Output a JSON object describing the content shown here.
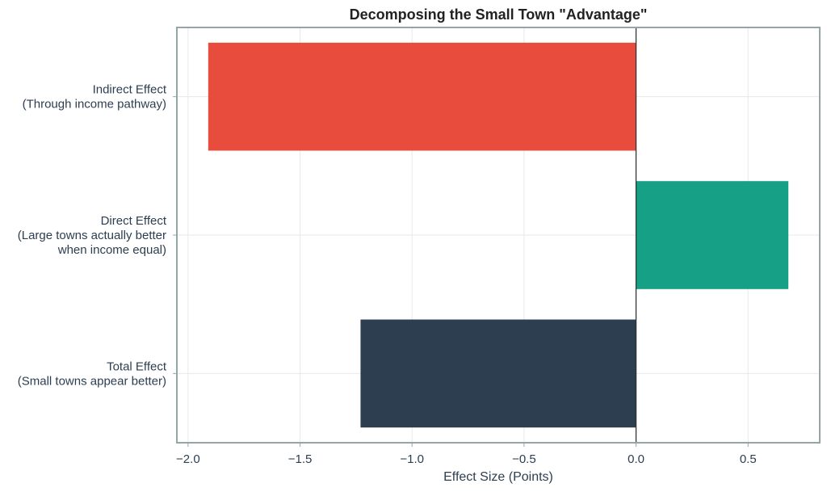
{
  "chart_data": {
    "type": "bar",
    "orientation": "horizontal",
    "title": "Decomposing the Small Town \"Advantage\"",
    "xlabel": "Effect Size (Points)",
    "ylabel": "",
    "xlim": [
      -2.05,
      0.82
    ],
    "x_ticks": [
      -2.0,
      -1.5,
      -1.0,
      -0.5,
      0.0,
      0.5
    ],
    "x_tick_labels": [
      "−2.0",
      "−1.5",
      "−1.0",
      "−0.5",
      "0.0",
      "0.5"
    ],
    "grid": true,
    "reference_line_x": 0,
    "categories": [
      [
        "Indirect Effect",
        "(Through income pathway)"
      ],
      [
        "Direct Effect",
        "(Large towns actually better",
        "when income equal)"
      ],
      [
        "Total Effect",
        "(Small towns appear better)"
      ]
    ],
    "values": [
      -1.91,
      0.68,
      -1.23
    ],
    "colors": [
      "#e74c3c",
      "#16a085",
      "#2c3e50"
    ]
  },
  "colors": {
    "frame": "#95a5a6",
    "grid": "#e6e9ea",
    "zero_line": "#333333",
    "text": "#2c3e50"
  }
}
